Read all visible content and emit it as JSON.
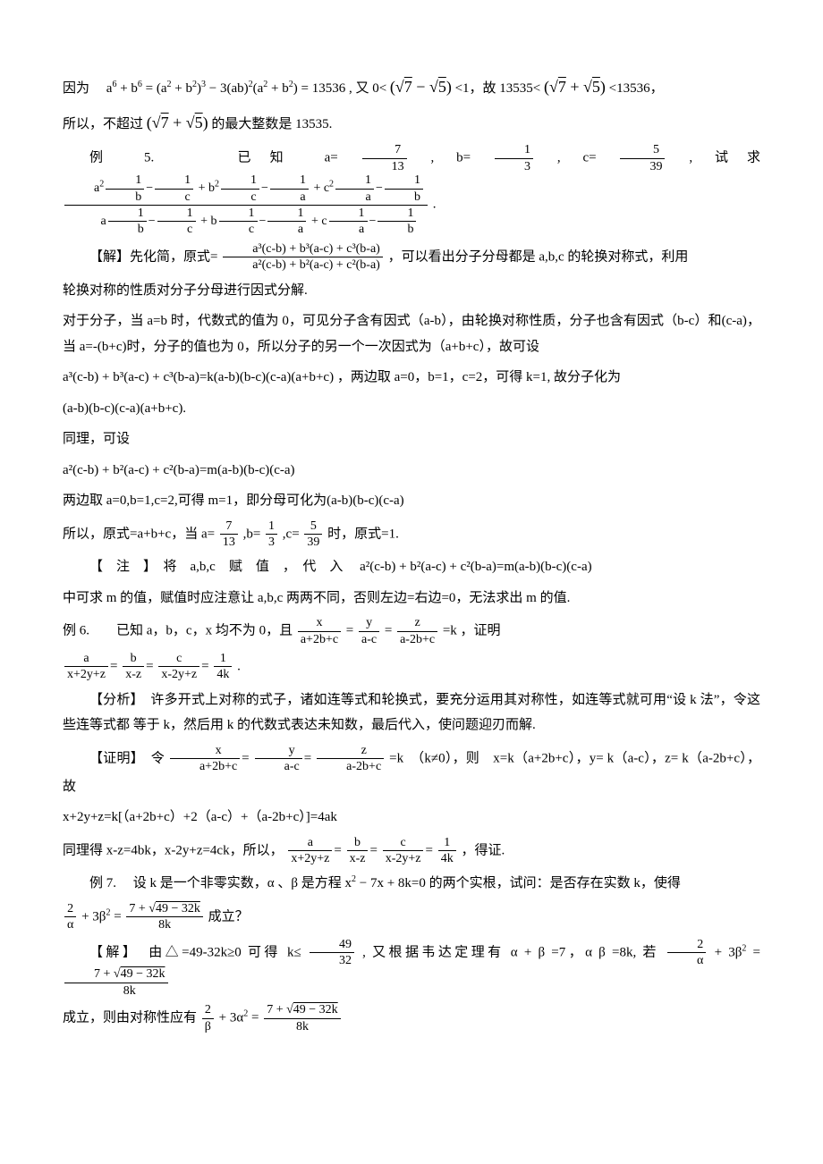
{
  "p1": {
    "pre": "因为　",
    "eq1_lhs": "a",
    "eq1_sup1": "6",
    "eq1_plus": " + b",
    "eq1_sup2": "6",
    "eq1_eq": " = (a",
    "eq1_sup3": "2",
    "eq1_pb2": " + b",
    "eq1_sup4": "2",
    "eq1_close": ")",
    "eq1_cubed": "3",
    "eq1_rest1": " − 3(ab)",
    "eq1_sup5": "2",
    "eq1_rest2": "(a",
    "eq1_sup6": "2",
    "eq1_rest3": " + b",
    "eq1_sup7": "2",
    "eq1_rest4": ") = 13536",
    "mid": " , 又 0< ",
    "sqrt_a": "(√7 − √5)",
    "lt1": " <1，故 13535< ",
    "sqrt_b": "(√7 + √5)",
    "lt2": " <13536，"
  },
  "p2": {
    "pre": "所以，不超过",
    "expr": "(√7 + √5)",
    "post": " 的最大整数是 13535."
  },
  "ex5": {
    "label": "例 5.　　已知 a=",
    "a_num": "7",
    "a_den": "13",
    "mid1": ", b=",
    "b_num": "1",
    "b_den": "3",
    "mid2": ", c=",
    "c_num": "5",
    "c_den": "39",
    "mid3": ", 试求",
    "big_num_a": "a",
    "sup2": "2",
    "frac_1b_1c_num": "1",
    "frac_1b_den": "b",
    "frac_1c_den": "c",
    "plus_b2": " + b",
    "frac_1c_1a_num": "1",
    "frac_1a_den": "a",
    "plus_c2": " + c",
    "period": "."
  },
  "sol1": {
    "pre": "【解】先化简，原式= ",
    "num": "a³(c-b) + b³(a-c) + c³(b-a)",
    "den": "a²(c-b) + b²(a-c) + c²(b-a)",
    "post": "，可以看出分子分母都是 a,b,c 的轮换对称式，利用"
  },
  "p3": "轮换对称的性质对分子分母进行因式分解.",
  "p4": "对于分子，当 a=b 时，代数式的值为 0，可见分子含有因式（a-b），由轮换对称性质，分子也含有因式（b-c）和(c-a)，当 a=-(b+c)时，分子的值也为 0，所以分子的另一个一次因式为（a+b+c），故可设",
  "p5": {
    "expr": "a³(c-b) + b³(a-c) + c³(b-a)=k(a-b)(b-c)(c-a)(a+b+c)",
    "post": "，两边取 a=0，b=1，c=2，可得 k=1, 故分子化为"
  },
  "p6": "(a-b)(b-c)(c-a)(a+b+c).",
  "p7": "同理，可设",
  "p8": "a²(c-b) + b²(a-c) + c²(b-a)=m(a-b)(b-c)(c-a)",
  "p9": "两边取 a=0,b=1,c=2,可得 m=1，即分母可化为(a-b)(b-c)(c-a)",
  "p10": {
    "pre": "所以，原式=a+b+c，当 a= ",
    "a_num": "7",
    "a_den": "13",
    "m1": " ,b= ",
    "b_num": "1",
    "b_den": "3",
    "m2": " ,c= ",
    "c_num": "5",
    "c_den": "39",
    "post": " 时，原式=1."
  },
  "note": {
    "pre": "【　注　】　将　a,b,c　赋　值　，　代　入　",
    "expr": "a²(c-b) + b²(a-c) + c²(b-a)=m(a-b)(b-c)(c-a)"
  },
  "p11": "中可求 m 的值，赋值时应注意让 a,b,c 两两不同，否则左边=右边=0，无法求出 m 的值.",
  "ex6": {
    "pre": "例 6.　　已知 a，b，c，x 均不为 0，且",
    "f1_num": "x",
    "f1_den": "a+2b+c",
    "eq": "=",
    "f2_num": "y",
    "f2_den": "a-c",
    "f3_num": "z",
    "f3_den": "a-2b+c",
    "post": "=k ，证明"
  },
  "ex6b": {
    "f1_num": "a",
    "f1_den": "x+2y+z",
    "f2_num": "b",
    "f2_den": "x-z",
    "f3_num": "c",
    "f3_den": "x-2y+z",
    "f4_num": "1",
    "f4_den": "4k",
    "period": "."
  },
  "ana": "【分析】　许多开式上对称的式子，诸如连等式和轮换式，要充分运用其对称性，如连等式就可用“设 k 法”，令这些连等式都 等于 k，然后用 k 的代数式表达未知数，最后代入，使问题迎刃而解.",
  "proof": {
    "pre": "【证明】　令",
    "f1_num": "x",
    "f1_den": "a+2b+c",
    "f2_num": "y",
    "f2_den": "a-c",
    "f3_num": "z",
    "f3_den": "a-2b+c",
    "mid": "=k　（k≠0），则　x=k（a+2b+c），y= k（a-c），z= k（a-2b+c），故"
  },
  "p12": "x+2y+z=k[（a+2b+c）+2（a-c）+（a-2b+c）]=4ak",
  "p13": {
    "pre": "同理得 x-z=4bk，x-2y+z=4ck，所以，",
    "f1_num": "a",
    "f1_den": "x+2y+z",
    "f2_num": "b",
    "f2_den": "x-z",
    "f3_num": "c",
    "f3_den": "x-2y+z",
    "f4_num": "1",
    "f4_den": "4k",
    "post": "，得证."
  },
  "ex7": {
    "pre": "例 7.　 设 k 是一个非零实数，α 、β 是方程 x",
    "sup2": "2",
    "mid": " − 7x + 8k=0 的两个实根，试问：是否存在实数 k，使得"
  },
  "ex7b": {
    "f1_num": "2",
    "f1_den": "α",
    "mid1": " + 3β",
    "sup2": "2",
    "eq": "=",
    "f2_num": "7 + √(49 − 32k)",
    "f2_den": "8k",
    "post": " 成立？"
  },
  "sol7": {
    "pre": "【解】　由△=49-32k≥0 可得 k≤",
    "f1_num": "49",
    "f1_den": "32",
    "mid": " , 又根据韦达定理有 α + β =7，α β =8k, 若",
    "f2_num": "2",
    "f2_den": "α",
    "mid2": " + 3β",
    "sup2": "2",
    "eq": "=",
    "f3_num": "7 + √(49 − 32k)",
    "f3_den": "8k"
  },
  "p14": {
    "pre": "成立，则由对称性应有",
    "f1_num": "2",
    "f1_den": "β",
    "mid": " + 3α",
    "sup2": "2",
    "eq": "=",
    "f2_num": "7 + √(49 − 32k)",
    "f2_den": "8k"
  }
}
